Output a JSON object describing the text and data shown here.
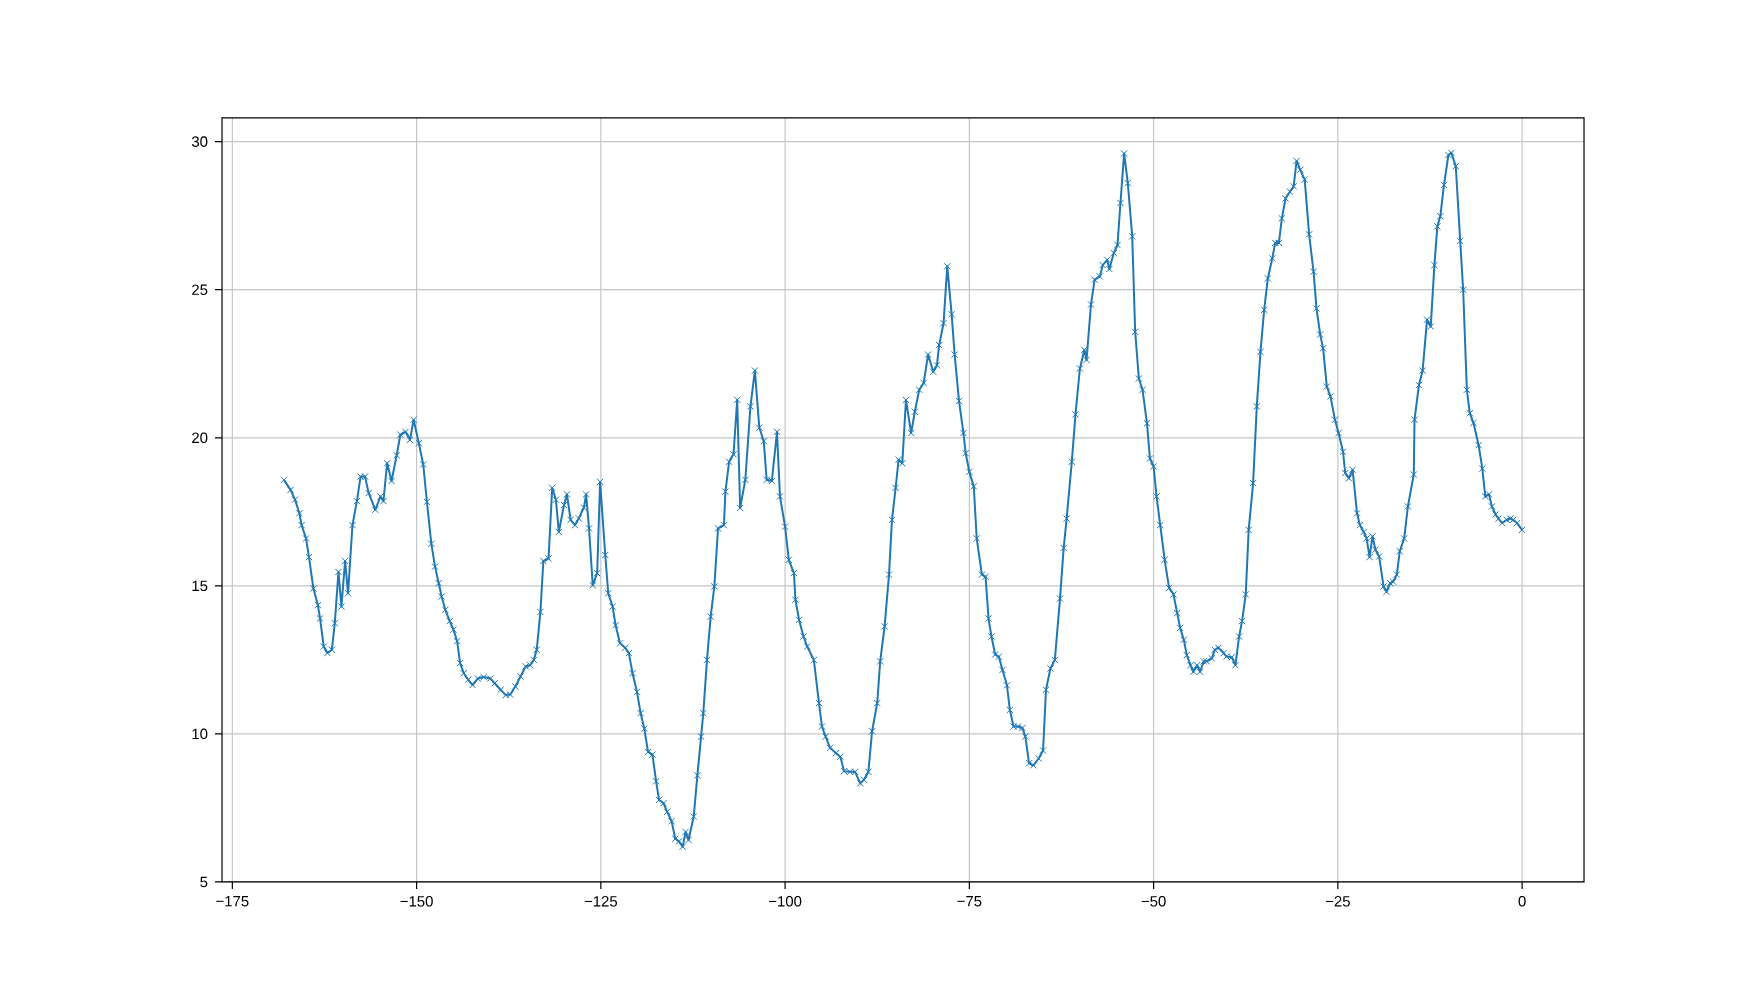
{
  "chart_data": {
    "type": "line",
    "color": "#1f77b4",
    "marker": "cross",
    "line_style": "solid",
    "grid": true,
    "xlim": [
      -176.4,
      8.4
    ],
    "ylim": [
      5.0,
      30.8
    ],
    "xticks": [
      {
        "value": -175,
        "label": "−175"
      },
      {
        "value": -150,
        "label": "−150"
      },
      {
        "value": -125,
        "label": "−125"
      },
      {
        "value": -100,
        "label": "−100"
      },
      {
        "value": -75,
        "label": "−75"
      },
      {
        "value": -50,
        "label": "−50"
      },
      {
        "value": -25,
        "label": "−25"
      },
      0
    ],
    "yticks": [
      5,
      10,
      15,
      20,
      25,
      30
    ],
    "x": [
      -168.0,
      -167.1,
      -166.5,
      -165.9,
      -165.6,
      -165.0,
      -164.6,
      -164.0,
      -163.4,
      -163.1,
      -162.6,
      -162.1,
      -161.5,
      -161.1,
      -160.6,
      -160.2,
      -159.7,
      -159.3,
      -158.7,
      -158.1,
      -157.6,
      -157.0,
      -156.5,
      -155.6,
      -154.9,
      -154.5,
      -154.0,
      -153.4,
      -152.7,
      -152.2,
      -151.5,
      -150.9,
      -150.4,
      -149.7,
      -149.1,
      -148.6,
      -148.0,
      -147.5,
      -147.0,
      -146.6,
      -146.1,
      -145.5,
      -145.0,
      -144.5,
      -144.1,
      -143.6,
      -143.0,
      -142.4,
      -141.7,
      -140.9,
      -140.0,
      -139.4,
      -138.6,
      -137.9,
      -137.3,
      -136.6,
      -135.9,
      -135.2,
      -134.6,
      -134.1,
      -133.7,
      -133.2,
      -132.8,
      -132.1,
      -131.6,
      -131.1,
      -130.7,
      -130.0,
      -129.6,
      -129.1,
      -128.5,
      -128.0,
      -127.3,
      -127.0,
      -126.6,
      -126.1,
      -125.5,
      -125.1,
      -124.4,
      -124.0,
      -123.4,
      -123.0,
      -122.4,
      -121.7,
      -121.2,
      -120.7,
      -120.1,
      -119.6,
      -119.1,
      -118.6,
      -118.0,
      -117.5,
      -117.1,
      -116.5,
      -116.0,
      -115.4,
      -114.9,
      -114.4,
      -113.9,
      -113.5,
      -113.1,
      -112.4,
      -111.9,
      -111.4,
      -111.1,
      -110.6,
      -110.1,
      -109.6,
      -109.1,
      -108.3,
      -108.1,
      -107.6,
      -107.0,
      -106.5,
      -106.1,
      -105.4,
      -104.7,
      -104.1,
      -103.5,
      -102.9,
      -102.5,
      -101.8,
      -101.1,
      -100.7,
      -100.0,
      -99.5,
      -98.8,
      -98.6,
      -98.1,
      -97.5,
      -97.0,
      -96.1,
      -95.4,
      -95.0,
      -94.5,
      -93.9,
      -93.1,
      -92.5,
      -92.0,
      -91.2,
      -90.5,
      -89.8,
      -89.3,
      -88.7,
      -88.2,
      -87.5,
      -87.1,
      -86.5,
      -85.9,
      -85.5,
      -85.0,
      -84.6,
      -84.1,
      -83.6,
      -82.9,
      -82.4,
      -81.8,
      -81.2,
      -80.6,
      -79.9,
      -79.4,
      -79.1,
      -78.5,
      -78.0,
      -77.4,
      -77.0,
      -76.4,
      -75.8,
      -75.5,
      -75.0,
      -74.4,
      -74.0,
      -73.3,
      -72.8,
      -72.4,
      -72.0,
      -71.5,
      -71.0,
      -70.5,
      -69.9,
      -69.5,
      -69.0,
      -68.4,
      -67.8,
      -67.4,
      -66.9,
      -66.3,
      -65.6,
      -65.0,
      -64.6,
      -64.0,
      -63.4,
      -62.7,
      -62.2,
      -61.8,
      -61.1,
      -60.6,
      -60.0,
      -59.4,
      -59.1,
      -58.5,
      -58.0,
      -57.3,
      -56.9,
      -56.3,
      -56.0,
      -55.4,
      -54.9,
      -54.5,
      -54.0,
      -53.5,
      -52.9,
      -52.5,
      -52.0,
      -51.5,
      -50.9,
      -50.5,
      -50.0,
      -49.6,
      -49.1,
      -48.5,
      -47.9,
      -47.3,
      -46.8,
      -46.4,
      -45.9,
      -45.5,
      -45.0,
      -44.6,
      -44.1,
      -43.7,
      -43.2,
      -42.8,
      -42.1,
      -41.7,
      -41.2,
      -40.5,
      -40.1,
      -39.4,
      -38.9,
      -38.4,
      -38.0,
      -37.5,
      -37.1,
      -36.5,
      -36.0,
      -35.5,
      -35.0,
      -34.5,
      -33.9,
      -33.5,
      -33.0,
      -32.6,
      -32.1,
      -31.5,
      -31.0,
      -30.6,
      -30.1,
      -29.5,
      -28.9,
      -28.3,
      -27.9,
      -27.4,
      -27.0,
      -26.5,
      -26.0,
      -25.4,
      -24.9,
      -24.3,
      -24.0,
      -23.5,
      -23.0,
      -22.4,
      -22.0,
      -21.5,
      -21.1,
      -20.7,
      -20.3,
      -19.9,
      -19.4,
      -18.8,
      -18.4,
      -17.9,
      -17.5,
      -17.0,
      -16.6,
      -16.0,
      -15.5,
      -14.7,
      -14.6,
      -14.0,
      -13.5,
      -12.9,
      -12.4,
      -11.9,
      -11.5,
      -11.1,
      -10.6,
      -10.0,
      -9.6,
      -9.0,
      -8.4,
      -8.0,
      -7.5,
      -7.1,
      -6.6,
      -5.9,
      -5.4,
      -5.0,
      -4.5,
      -4.1,
      -3.6,
      -3.2,
      -2.7,
      -2.1,
      -1.6,
      -1.2,
      -0.7,
      0.0
    ],
    "values": [
      18.58,
      18.24,
      17.91,
      17.45,
      17.05,
      16.6,
      15.97,
      14.91,
      14.35,
      13.9,
      12.95,
      12.73,
      12.84,
      13.74,
      15.47,
      14.3,
      15.84,
      14.75,
      17.05,
      17.86,
      18.69,
      18.69,
      18.13,
      17.57,
      18.02,
      17.86,
      19.14,
      18.54,
      19.41,
      20.11,
      20.2,
      19.93,
      20.61,
      19.82,
      19.1,
      17.84,
      16.42,
      15.65,
      15.09,
      14.64,
      14.19,
      13.81,
      13.52,
      13.13,
      12.39,
      12.05,
      11.83,
      11.65,
      11.87,
      11.92,
      11.87,
      11.71,
      11.49,
      11.31,
      11.33,
      11.6,
      11.94,
      12.28,
      12.32,
      12.5,
      12.84,
      14.12,
      15.84,
      15.92,
      18.31,
      17.91,
      16.82,
      17.73,
      18.09,
      17.23,
      17.05,
      17.28,
      17.64,
      18.09,
      16.94,
      15.02,
      15.43,
      18.51,
      16.04,
      14.75,
      14.3,
      13.67,
      13.06,
      12.91,
      12.73,
      12.05,
      11.42,
      10.7,
      10.18,
      9.39,
      9.3,
      8.4,
      7.77,
      7.66,
      7.37,
      7.05,
      6.46,
      6.37,
      6.19,
      6.69,
      6.42,
      7.21,
      8.6,
      9.91,
      10.7,
      12.5,
      13.96,
      14.98,
      16.94,
      17.05,
      18.18,
      19.19,
      19.44,
      21.28,
      17.63,
      18.58,
      21.06,
      22.27,
      20.34,
      19.89,
      18.58,
      18.54,
      20.2,
      18.02,
      17.0,
      15.88,
      15.43,
      14.53,
      13.85,
      13.29,
      12.95,
      12.5,
      11.04,
      10.25,
      9.91,
      9.53,
      9.35,
      9.23,
      8.74,
      8.72,
      8.72,
      8.33,
      8.45,
      8.72,
      10.09,
      11.04,
      12.45,
      13.63,
      15.38,
      17.23,
      18.31,
      19.26,
      19.14,
      21.28,
      20.16,
      20.88,
      21.62,
      21.85,
      22.81,
      22.23,
      22.45,
      23.13,
      23.87,
      25.79,
      24.17,
      22.81,
      21.24,
      20.16,
      19.48,
      18.85,
      18.36,
      16.6,
      15.38,
      15.31,
      13.9,
      13.29,
      12.68,
      12.61,
      12.16,
      11.64,
      10.81,
      10.25,
      10.25,
      10.2,
      9.91,
      9.01,
      8.94,
      9.17,
      9.44,
      11.49,
      12.21,
      12.5,
      14.57,
      16.28,
      17.27,
      19.19,
      20.79,
      22.34,
      22.97,
      22.63,
      24.5,
      25.34,
      25.45,
      25.83,
      26.01,
      25.7,
      26.24,
      26.51,
      27.93,
      29.6,
      28.6,
      26.8,
      23.58,
      22.0,
      21.62,
      20.49,
      19.3,
      19.03,
      18.02,
      17.05,
      15.88,
      14.93,
      14.71,
      14.08,
      13.58,
      13.18,
      12.66,
      12.32,
      12.1,
      12.32,
      12.1,
      12.45,
      12.45,
      12.55,
      12.84,
      12.91,
      12.73,
      12.61,
      12.59,
      12.32,
      13.29,
      13.81,
      14.71,
      16.89,
      18.47,
      21.06,
      22.9,
      24.32,
      25.38,
      26.06,
      26.58,
      26.58,
      27.41,
      28.08,
      28.31,
      28.49,
      29.35,
      29.05,
      28.72,
      26.87,
      25.61,
      24.37,
      23.49,
      23.02,
      21.73,
      21.4,
      20.61,
      20.16,
      19.53,
      18.81,
      18.63,
      18.92,
      17.45,
      17.05,
      16.82,
      16.6,
      15.97,
      16.67,
      16.22,
      15.99,
      14.98,
      14.8,
      15.09,
      15.14,
      15.38,
      16.17,
      16.6,
      17.68,
      18.76,
      20.61,
      21.78,
      22.27,
      23.99,
      23.76,
      25.83,
      27.14,
      27.48,
      28.54,
      29.55,
      29.62,
      29.17,
      26.65,
      25.0,
      21.62,
      20.83,
      20.5,
      19.75,
      18.96,
      18.02,
      18.09,
      17.68,
      17.41,
      17.27,
      17.12,
      17.23,
      17.27,
      17.23,
      17.12,
      16.89
    ]
  }
}
